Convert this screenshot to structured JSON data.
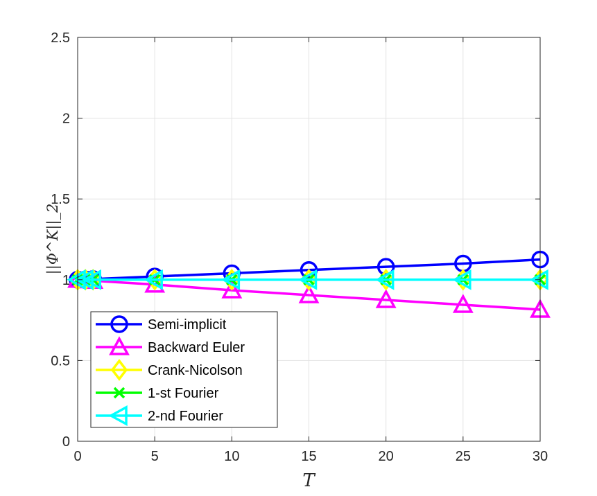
{
  "chart_data": {
    "type": "line",
    "xlabel": "T",
    "ylabel": "||Φ^K||_2",
    "xlim": [
      0,
      30
    ],
    "ylim": [
      0,
      2.5
    ],
    "xticks": [
      0,
      5,
      10,
      15,
      20,
      25,
      30
    ],
    "yticks": [
      0,
      0.5,
      1,
      1.5,
      2,
      2.5
    ],
    "xtick_labels": [
      "0",
      "5",
      "10",
      "15",
      "20",
      "25",
      "30"
    ],
    "ytick_labels": [
      "0",
      "0.5",
      "1",
      "1.5",
      "2",
      "2.5"
    ],
    "grid": true,
    "legend_position": "bottom-left",
    "series": [
      {
        "name": "Semi-implicit",
        "color": "#0000ff",
        "marker": "circle",
        "x": [
          0,
          0.5,
          1,
          5,
          10,
          15,
          20,
          25,
          30
        ],
        "y": [
          1.0,
          1.002,
          1.004,
          1.02,
          1.04,
          1.06,
          1.08,
          1.1,
          1.125
        ]
      },
      {
        "name": "Backward Euler",
        "color": "#ff00ff",
        "marker": "triangle-up",
        "x": [
          0,
          0.5,
          1,
          5,
          10,
          15,
          20,
          25,
          30
        ],
        "y": [
          1.0,
          0.997,
          0.994,
          0.97,
          0.935,
          0.905,
          0.875,
          0.845,
          0.815
        ]
      },
      {
        "name": "Crank-Nicolson",
        "color": "#ffff00",
        "marker": "diamond",
        "x": [
          0,
          0.5,
          1,
          5,
          10,
          15,
          20,
          25,
          30
        ],
        "y": [
          1.0,
          1.0,
          1.0,
          1.0,
          1.0,
          1.0,
          1.0,
          1.0,
          1.0
        ]
      },
      {
        "name": "1-st Fourier",
        "color": "#00ff00",
        "marker": "x",
        "x": [
          0,
          0.5,
          1,
          5,
          10,
          15,
          20,
          25,
          30
        ],
        "y": [
          1.0,
          1.0,
          1.0,
          1.0,
          1.0,
          1.0,
          1.0,
          1.0,
          1.0
        ]
      },
      {
        "name": "2-nd Fourier",
        "color": "#00ffff",
        "marker": "triangle-left",
        "x": [
          0,
          0.5,
          1,
          5,
          10,
          15,
          20,
          25,
          30
        ],
        "y": [
          1.0,
          1.0,
          1.0,
          1.0,
          1.0,
          1.0,
          1.0,
          1.0,
          1.0
        ]
      }
    ]
  }
}
